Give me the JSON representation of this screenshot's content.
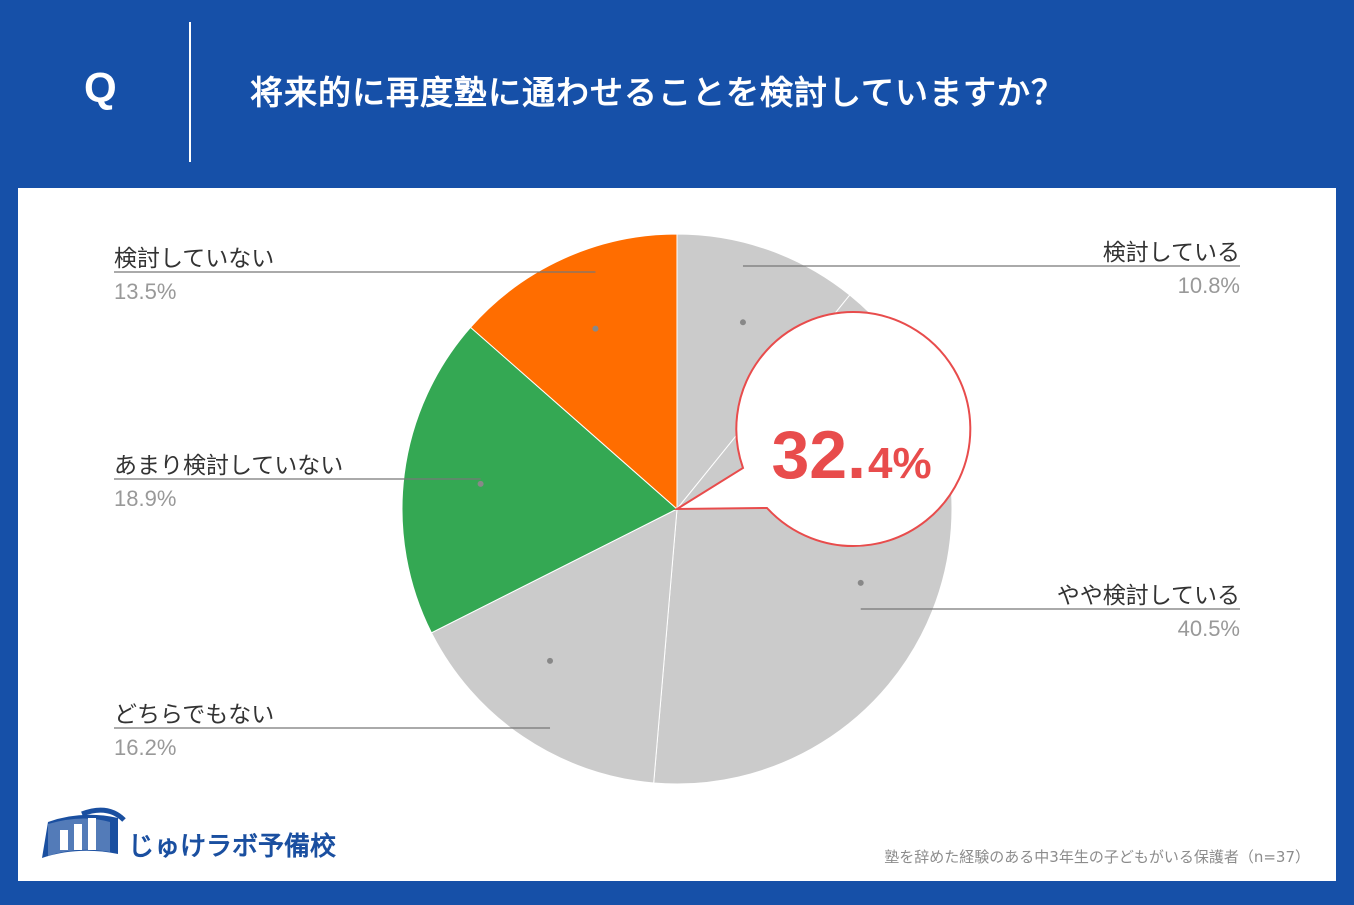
{
  "header": {
    "q_mark": "Q",
    "question": "将来的に再度塾に通わせることを検討していますか？"
  },
  "colors": {
    "header_bg": "#1650a8",
    "gray_slice": "#cbcbcb",
    "orange_slice": "#ff6d00",
    "green_slice": "#34a853",
    "highlight": "#e84c4c"
  },
  "chart_data": {
    "type": "pie",
    "start": "12 o'clock, clockwise",
    "slices": [
      {
        "label": "検討している",
        "value": 10.8,
        "display": "10.8%",
        "color": "#cbcbcb"
      },
      {
        "label": "やや検討している",
        "value": 40.5,
        "display": "40.5%",
        "color": "#cbcbcb"
      },
      {
        "label": "どちらでもない",
        "value": 16.2,
        "display": "16.2%",
        "color": "#cbcbcb"
      },
      {
        "label": "あまり検討していない",
        "value": 18.9,
        "display": "18.9%",
        "color": "#34a853"
      },
      {
        "label": "検討していない",
        "value": 13.5,
        "display": "13.5%",
        "color": "#ff6d00"
      }
    ],
    "callout": {
      "big": "32.",
      "small": "4%",
      "value": 32.4
    }
  },
  "logo": {
    "text": "じゅけラボ予備校",
    "icon": "open-book-logo-icon"
  },
  "footnote": "塾を辞めた経験のある中3年生の子どもがいる保護者（n=37）"
}
